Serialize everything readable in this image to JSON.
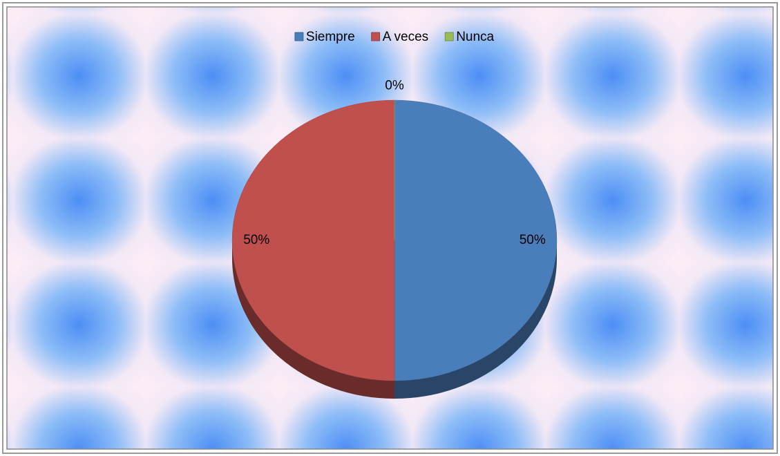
{
  "chart_data": {
    "type": "pie",
    "categories": [
      "Siempre",
      "A veces",
      "Nunca"
    ],
    "values": [
      50,
      50,
      0
    ],
    "value_labels": [
      "50%",
      "50%",
      "0%"
    ],
    "colors": [
      "#4a7ebb",
      "#c0504d",
      "#9bbb59"
    ],
    "legend": "top"
  }
}
